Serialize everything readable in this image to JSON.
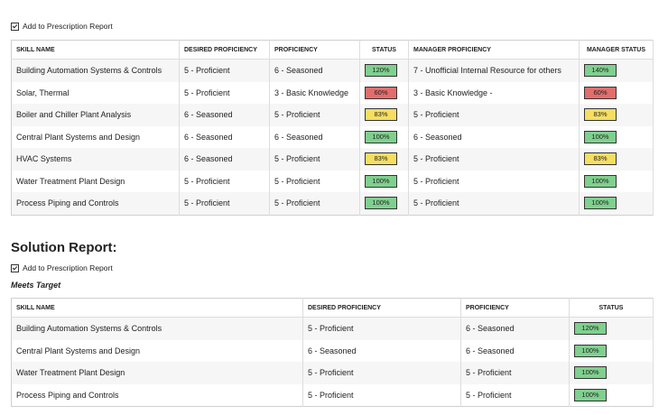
{
  "section1": {
    "checkbox_label": "Add to Prescription Report",
    "table": {
      "headers": [
        "SKILL NAME",
        "DESIRED PROFICIENCY",
        "PROFICIENCY",
        "STATUS",
        "MANAGER PROFICIENCY",
        "MANAGER STATUS"
      ],
      "rows": [
        [
          "Building Automation Systems & Controls",
          "5 - Proficient",
          "6 - Seasoned",
          {
            "text": "120%",
            "color": "#7fd08e"
          },
          "7 - Unofficial Internal Resource for others",
          {
            "text": "140%",
            "color": "#7fd08e"
          }
        ],
        [
          "Solar, Thermal",
          "5 - Proficient",
          "3 - Basic Knowledge",
          {
            "text": "60%",
            "color": "#e26d6d"
          },
          "3 - Basic Knowledge -",
          {
            "text": "60%",
            "color": "#e26d6d"
          }
        ],
        [
          "Boiler and Chiller Plant Analysis",
          "6 - Seasoned",
          "5 - Proficient",
          {
            "text": "83%",
            "color": "#f6de62"
          },
          "5 - Proficient",
          {
            "text": "83%",
            "color": "#f6de62"
          }
        ],
        [
          "Central Plant Systems and Design",
          "6 - Seasoned",
          "6 - Seasoned",
          {
            "text": "100%",
            "color": "#7fd08e"
          },
          "6 - Seasoned",
          {
            "text": "100%",
            "color": "#7fd08e"
          }
        ],
        [
          "HVAC Systems",
          "6 - Seasoned",
          "5 - Proficient",
          {
            "text": "83%",
            "color": "#f6de62"
          },
          "5 - Proficient",
          {
            "text": "83%",
            "color": "#f6de62"
          }
        ],
        [
          "Water Treatment Plant Design",
          "5 - Proficient",
          "5 - Proficient",
          {
            "text": "100%",
            "color": "#7fd08e"
          },
          "5 - Proficient",
          {
            "text": "100%",
            "color": "#7fd08e"
          }
        ],
        [
          "Process Piping and Controls",
          "5 - Proficient",
          "5 - Proficient",
          {
            "text": "100%",
            "color": "#7fd08e"
          },
          "5 - Proficient",
          {
            "text": "100%",
            "color": "#7fd08e"
          }
        ]
      ]
    }
  },
  "section2": {
    "title": "Solution Report:",
    "checkbox_label": "Add to Prescription Report",
    "subtitle": "Meets Target",
    "table": {
      "headers": [
        "SKILL NAME",
        "DESIRED PROFICIENCY",
        "PROFICIENCY",
        "STATUS"
      ],
      "rows": [
        [
          "Building Automation Systems & Controls",
          "5 - Proficient",
          "6 - Seasoned",
          {
            "text": "120%",
            "color": "#7fd08e"
          }
        ],
        [
          "Central Plant Systems and Design",
          "6 - Seasoned",
          "6 - Seasoned",
          {
            "text": "100%",
            "color": "#7fd08e"
          }
        ],
        [
          "Water Treatment Plant Design",
          "5 - Proficient",
          "5 - Proficient",
          {
            "text": "100%",
            "color": "#7fd08e"
          }
        ],
        [
          "Process Piping and Controls",
          "5 - Proficient",
          "5 - Proficient",
          {
            "text": "100%",
            "color": "#7fd08e"
          }
        ]
      ]
    }
  }
}
